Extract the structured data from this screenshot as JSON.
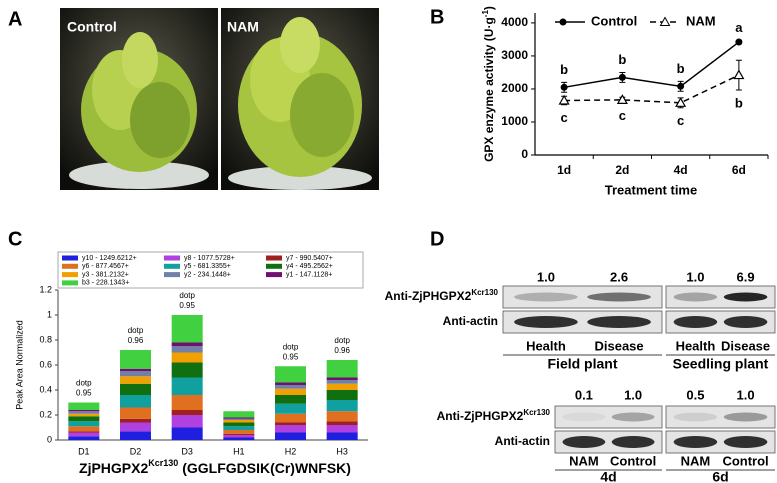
{
  "panel_labels": [
    "A",
    "B",
    "C",
    "D"
  ],
  "panel_a": {
    "photos": [
      "Control",
      "NAM"
    ]
  },
  "chart_data": [
    {
      "type": "line",
      "ylabel": "GPX enzyme activity (U·g",
      "ylabel_sup": "-1",
      "ylabel_end": ")",
      "xlabel": "Treatment time",
      "categories": [
        "1d",
        "2d",
        "4d",
        "6d"
      ],
      "ylim": [
        0,
        4300
      ],
      "yticks": [
        0,
        1000,
        2000,
        3000,
        4000
      ],
      "series": [
        {
          "name": "Control",
          "color": "#000000",
          "line_style": "solid",
          "marker": "circle",
          "values": [
            2050,
            2350,
            2080,
            3420
          ],
          "errors": [
            150,
            150,
            150,
            50
          ],
          "letters": [
            "b",
            "b",
            "b",
            "a"
          ]
        },
        {
          "name": "NAM",
          "color": "#000000",
          "line_style": "dashed",
          "marker": "triangle",
          "values": [
            1650,
            1670,
            1580,
            2420
          ],
          "errors": [
            130,
            80,
            150,
            450
          ],
          "letters": [
            "c",
            "c",
            "c",
            "b"
          ]
        }
      ]
    },
    {
      "type": "stacked_bar",
      "title": "ZjPHGPX2",
      "title_sup": "Kcr130",
      "title_rest": " (GGLFGDSIK(Cr)WNFSK)",
      "ylabel": "Peak Area Normalized",
      "categories": [
        "D1",
        "D2",
        "D3",
        "H1",
        "H2",
        "H3"
      ],
      "ylim": [
        0,
        1.2
      ],
      "yticks": [
        0,
        0.2,
        0.4,
        0.6,
        0.8,
        1,
        1.2
      ],
      "dotp_label": "dotp",
      "dotp": [
        0.95,
        0.96,
        0.95,
        null,
        0.95,
        0.96
      ],
      "series": [
        {
          "name": "y10 - 1249.6212+",
          "color": "#1f1fe0",
          "values": [
            0.03,
            0.07,
            0.1,
            0.02,
            0.06,
            0.06
          ]
        },
        {
          "name": "y8 - 1077.5728+",
          "color": "#b040e0",
          "values": [
            0.03,
            0.07,
            0.1,
            0.02,
            0.06,
            0.06
          ]
        },
        {
          "name": "y7 - 990.5407+",
          "color": "#a02020",
          "values": [
            0.01,
            0.03,
            0.04,
            0.01,
            0.02,
            0.03
          ]
        },
        {
          "name": "y6 - 877.4567+",
          "color": "#e07020",
          "values": [
            0.04,
            0.09,
            0.12,
            0.03,
            0.07,
            0.08
          ]
        },
        {
          "name": "y5 - 681.3355+",
          "color": "#10a0a0",
          "values": [
            0.04,
            0.1,
            0.14,
            0.03,
            0.08,
            0.09
          ]
        },
        {
          "name": "y4 - 495.2562+",
          "color": "#107010",
          "values": [
            0.04,
            0.09,
            0.12,
            0.03,
            0.07,
            0.08
          ]
        },
        {
          "name": "y3 - 381.2132+",
          "color": "#f0a000",
          "values": [
            0.02,
            0.06,
            0.08,
            0.02,
            0.05,
            0.05
          ]
        },
        {
          "name": "y2 - 234.1448+",
          "color": "#7080a8",
          "values": [
            0.02,
            0.04,
            0.05,
            0.01,
            0.03,
            0.03
          ]
        },
        {
          "name": "y1 - 147.1128+",
          "color": "#701070",
          "values": [
            0.01,
            0.02,
            0.03,
            0.01,
            0.02,
            0.02
          ]
        },
        {
          "name": "b3 - 228.1343+",
          "color": "#40d040",
          "values": [
            0.06,
            0.15,
            0.22,
            0.05,
            0.13,
            0.14
          ]
        }
      ]
    }
  ],
  "panel_d": {
    "antibody": "Anti-ZjPHGPX2",
    "antibody_sup": "Kcr130",
    "control_antibody": "Anti-actin",
    "blots": [
      {
        "ratios": [
          "1.0",
          "2.6"
        ],
        "lanes": [
          "Health",
          "Disease"
        ],
        "group": "Field plant"
      },
      {
        "ratios": [
          "1.0",
          "6.9"
        ],
        "lanes": [
          "Health",
          "Disease"
        ],
        "group": "Seedling plant"
      },
      {
        "ratios": [
          "0.1",
          "1.0"
        ],
        "lanes": [
          "NAM",
          "Control"
        ],
        "group": "4d"
      },
      {
        "ratios": [
          "0.5",
          "1.0"
        ],
        "lanes": [
          "NAM",
          "Control"
        ],
        "group": "6d"
      }
    ]
  }
}
